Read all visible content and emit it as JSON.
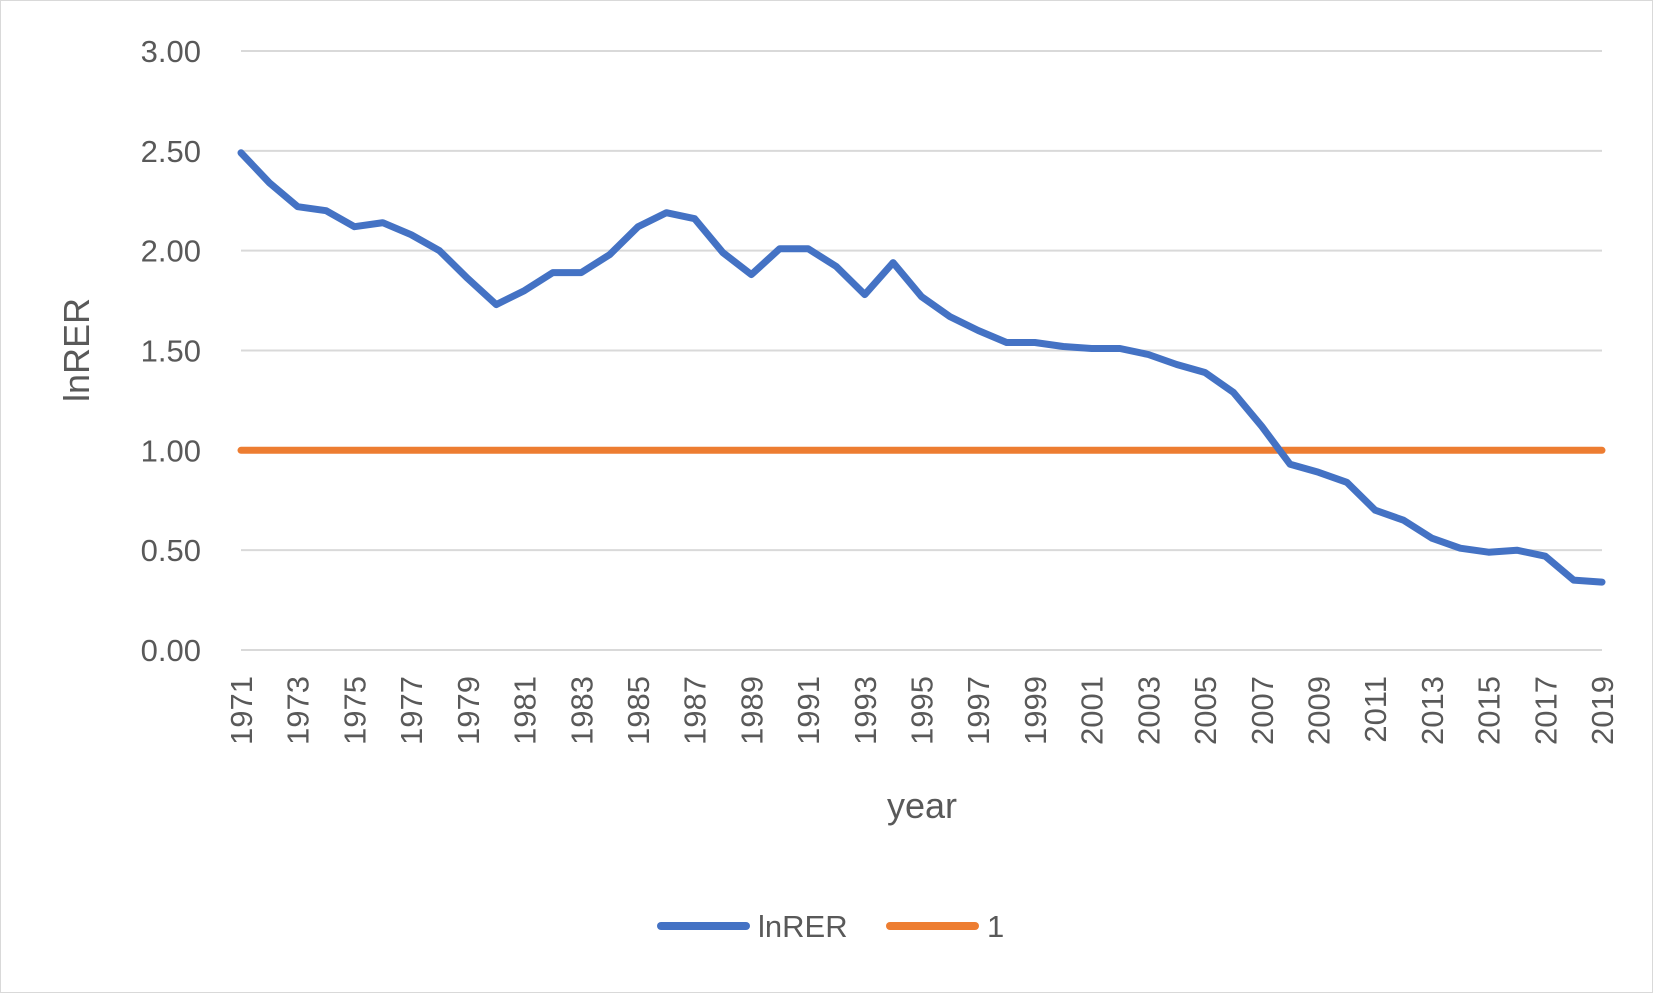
{
  "chart_data": {
    "type": "line",
    "title": "",
    "xlabel": "year",
    "ylabel": "lnRER",
    "ylim": [
      0,
      3
    ],
    "ytick_values": [
      0,
      0.5,
      1,
      1.5,
      2,
      2.5,
      3
    ],
    "ytick_labels": [
      "0.00",
      "0.50",
      "1.00",
      "1.50",
      "2.00",
      "2.50",
      "3.00"
    ],
    "x": [
      1971,
      1972,
      1973,
      1974,
      1975,
      1976,
      1977,
      1978,
      1979,
      1980,
      1981,
      1982,
      1983,
      1984,
      1985,
      1986,
      1987,
      1988,
      1989,
      1990,
      1991,
      1992,
      1993,
      1994,
      1995,
      1996,
      1997,
      1998,
      1999,
      2000,
      2001,
      2002,
      2003,
      2004,
      2005,
      2006,
      2007,
      2008,
      2009,
      2010,
      2011,
      2012,
      2013,
      2014,
      2015,
      2016,
      2017,
      2018,
      2019
    ],
    "xtick_labels": [
      "1971",
      "1973",
      "1975",
      "1977",
      "1979",
      "1981",
      "1983",
      "1985",
      "1987",
      "1989",
      "1991",
      "1993",
      "1995",
      "1997",
      "1999",
      "2001",
      "2003",
      "2005",
      "2007",
      "2009",
      "2011",
      "2013",
      "2015",
      "2017",
      "2019"
    ],
    "series": [
      {
        "name": "lnRER",
        "color": "#4472c4",
        "values": [
          2.49,
          2.34,
          2.22,
          2.2,
          2.12,
          2.14,
          2.08,
          2.0,
          1.86,
          1.73,
          1.8,
          1.89,
          1.89,
          1.98,
          2.12,
          2.19,
          2.16,
          1.99,
          1.88,
          2.01,
          2.01,
          1.92,
          1.78,
          1.94,
          1.77,
          1.67,
          1.6,
          1.54,
          1.54,
          1.52,
          1.51,
          1.51,
          1.48,
          1.43,
          1.39,
          1.29,
          1.12,
          0.93,
          0.89,
          0.84,
          0.7,
          0.65,
          0.56,
          0.51,
          0.49,
          0.5,
          0.47,
          0.35,
          0.34
        ]
      },
      {
        "name": "1",
        "color": "#ed7d31",
        "values": [
          1,
          1,
          1,
          1,
          1,
          1,
          1,
          1,
          1,
          1,
          1,
          1,
          1,
          1,
          1,
          1,
          1,
          1,
          1,
          1,
          1,
          1,
          1,
          1,
          1,
          1,
          1,
          1,
          1,
          1,
          1,
          1,
          1,
          1,
          1,
          1,
          1,
          1,
          1,
          1,
          1,
          1,
          1,
          1,
          1,
          1,
          1,
          1,
          1
        ]
      }
    ],
    "grid": true,
    "gridline_color": "#d9d9d9",
    "legend_position": "bottom"
  }
}
